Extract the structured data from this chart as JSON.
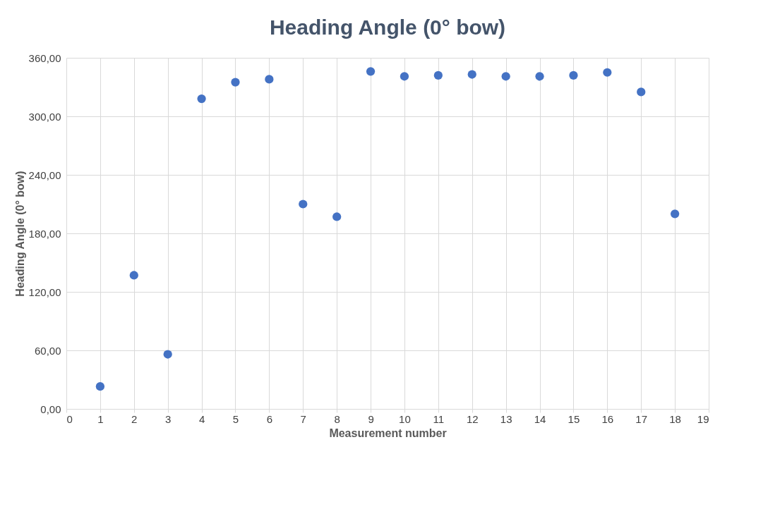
{
  "chart_data": {
    "type": "scatter",
    "title": "Heading Angle (0° bow)",
    "xlabel": "Measurement number",
    "ylabel": "Heading Angle (0° bow)",
    "x": [
      1,
      2,
      3,
      4,
      5,
      6,
      7,
      8,
      9,
      10,
      11,
      12,
      13,
      14,
      15,
      16,
      17,
      18
    ],
    "series": [
      {
        "color": "#4472c4",
        "values": [
          23,
          137,
          56,
          318,
          335,
          338,
          210,
          197,
          346,
          341,
          342,
          343,
          341,
          341,
          342,
          345,
          325,
          200
        ]
      }
    ],
    "xlim": [
      0,
      19
    ],
    "xticks": [
      0,
      1,
      2,
      3,
      4,
      5,
      6,
      7,
      8,
      9,
      10,
      11,
      12,
      13,
      14,
      15,
      16,
      17,
      18,
      19
    ],
    "ylim": [
      0,
      360
    ],
    "yticks": [
      {
        "value": 0,
        "label": "0,00"
      },
      {
        "value": 60,
        "label": "60,00"
      },
      {
        "value": 120,
        "label": "120,00"
      },
      {
        "value": 180,
        "label": "180,00"
      },
      {
        "value": 240,
        "label": "240,00"
      },
      {
        "value": 300,
        "label": "300,00"
      },
      {
        "value": 360,
        "label": "360,00"
      }
    ],
    "grid": true,
    "marker": "circle"
  }
}
